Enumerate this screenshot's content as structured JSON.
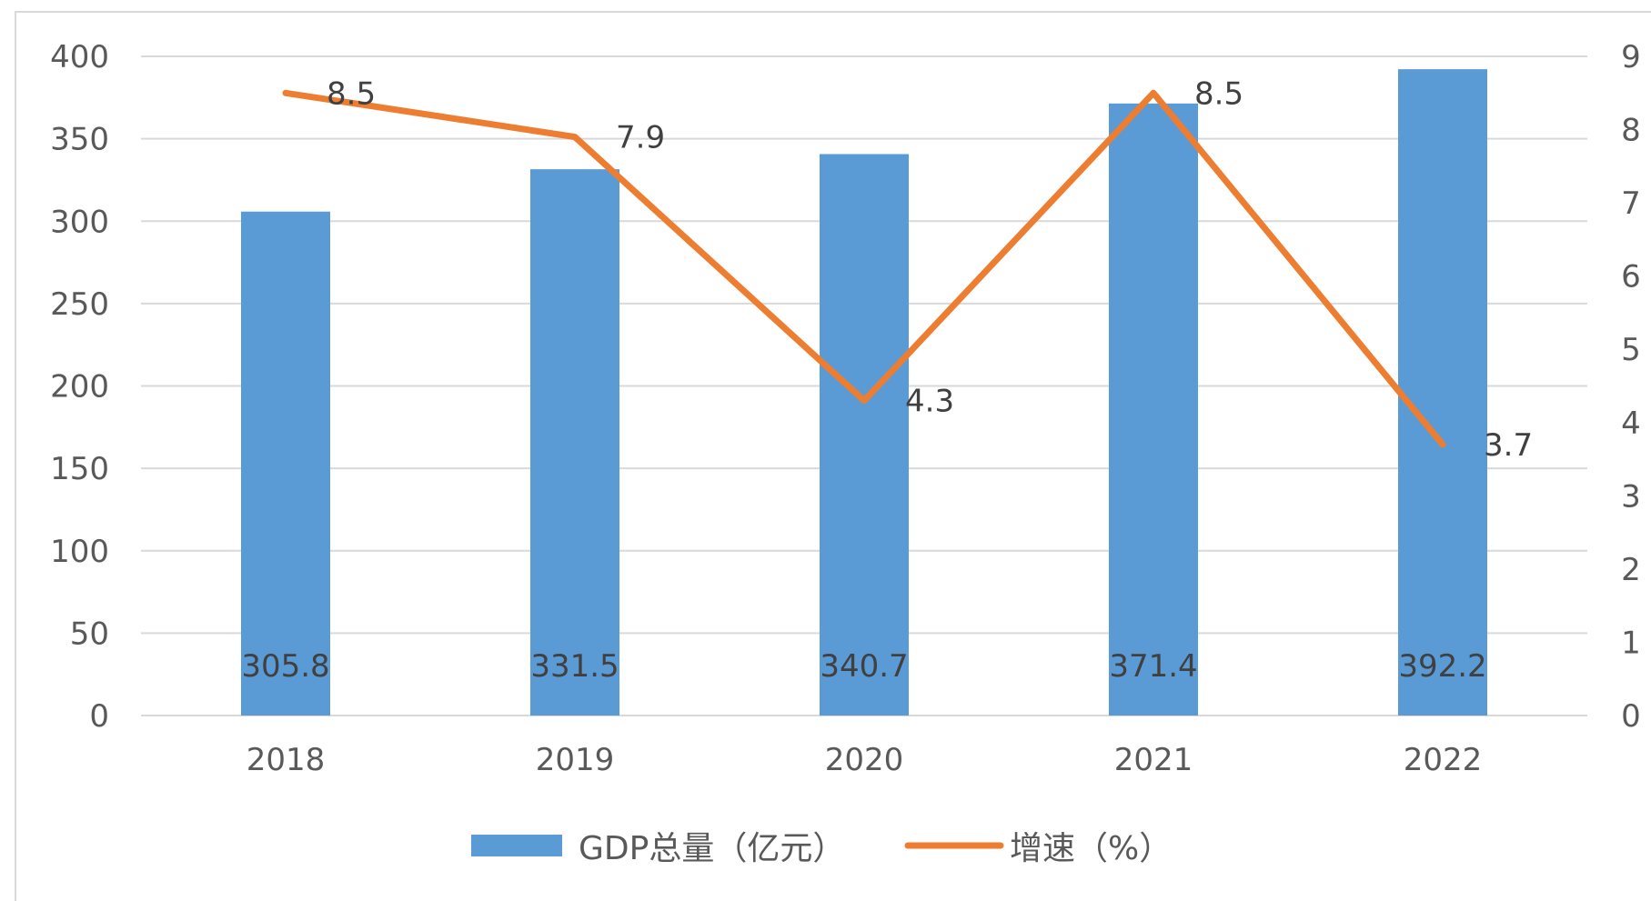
{
  "chart_data": {
    "type": "bar",
    "categories": [
      "2018",
      "2019",
      "2020",
      "2021",
      "2022"
    ],
    "series": [
      {
        "name": "GDP总量（亿元）",
        "type": "bar",
        "axis": "left",
        "values": [
          305.8,
          331.5,
          340.7,
          371.4,
          392.2
        ],
        "labels": [
          "305.8",
          "331.5",
          "340.7",
          "371.4",
          "392.2"
        ],
        "color": "#5B9BD5"
      },
      {
        "name": "增速（%）",
        "type": "line",
        "axis": "right",
        "values": [
          8.5,
          7.9,
          4.3,
          8.5,
          3.7
        ],
        "labels": [
          "8.5",
          "7.9",
          "4.3",
          "8.5",
          "3.7"
        ],
        "color": "#ED7D31"
      }
    ],
    "y_left": {
      "ylim": [
        0,
        400
      ],
      "ticks": [
        "0",
        "50",
        "100",
        "150",
        "200",
        "250",
        "300",
        "350",
        "400"
      ]
    },
    "y_right": {
      "ylim": [
        0,
        9
      ],
      "ticks": [
        "0",
        "1",
        "2",
        "3",
        "4",
        "5",
        "6",
        "7",
        "8",
        "9"
      ]
    },
    "grid": true,
    "legend": "bottom",
    "gridline_color": "#d9d9d9",
    "axis_text_color": "#595959"
  }
}
